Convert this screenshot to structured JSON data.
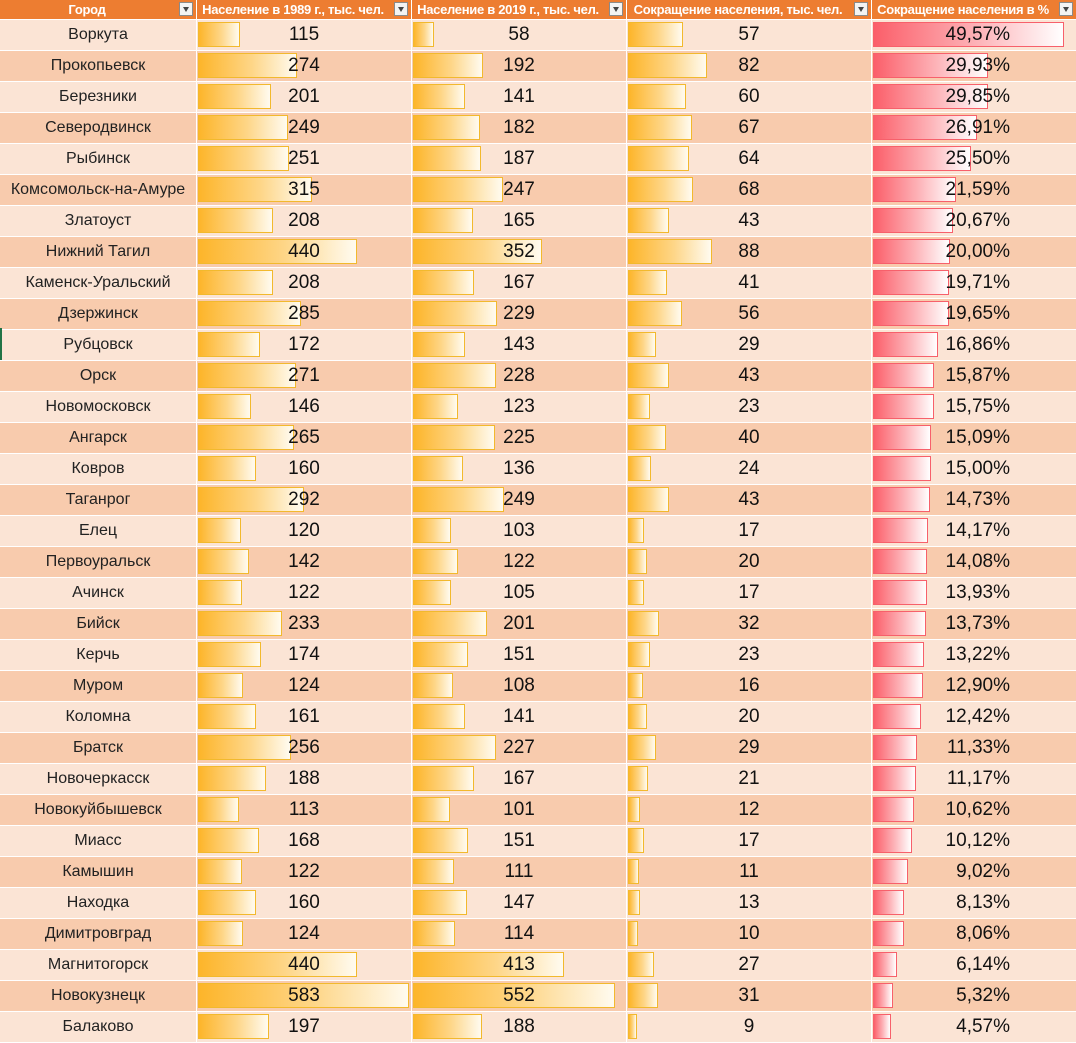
{
  "columns": [
    {
      "key": "city",
      "label": "Город"
    },
    {
      "key": "pop1989",
      "label": "Население в 1989 г., тыс. чел."
    },
    {
      "key": "pop2019",
      "label": "Население в 2019 г., тыс. чел."
    },
    {
      "key": "decline_abs",
      "label": "Сокращение населения, тыс. чел."
    },
    {
      "key": "decline_pct",
      "label": "Сокращение населения в %"
    }
  ],
  "bar_maxima": {
    "pop1989": 583,
    "pop2019": 552,
    "decline_abs": 250,
    "decline_pct": 52
  },
  "colors": {
    "header": "#ed7d31",
    "row_light": "#fbe4d5",
    "row_dark": "#f8cbad",
    "bar_orange": "#fdb52a",
    "bar_red": "#fb5f6a"
  },
  "rows": [
    {
      "city": "Воркута",
      "pop1989": 115,
      "pop2019": 58,
      "decline_abs": 57,
      "decline_pct_value": 49.57,
      "decline_pct": "49,57%"
    },
    {
      "city": "Прокопьевск",
      "pop1989": 274,
      "pop2019": 192,
      "decline_abs": 82,
      "decline_pct_value": 29.93,
      "decline_pct": "29,93%"
    },
    {
      "city": "Березники",
      "pop1989": 201,
      "pop2019": 141,
      "decline_abs": 60,
      "decline_pct_value": 29.85,
      "decline_pct": "29,85%"
    },
    {
      "city": "Северодвинск",
      "pop1989": 249,
      "pop2019": 182,
      "decline_abs": 67,
      "decline_pct_value": 26.91,
      "decline_pct": "26,91%"
    },
    {
      "city": "Рыбинск",
      "pop1989": 251,
      "pop2019": 187,
      "decline_abs": 64,
      "decline_pct_value": 25.5,
      "decline_pct": "25,50%"
    },
    {
      "city": "Комсомольск-на-Амуре",
      "pop1989": 315,
      "pop2019": 247,
      "decline_abs": 68,
      "decline_pct_value": 21.59,
      "decline_pct": "21,59%"
    },
    {
      "city": "Златоуст",
      "pop1989": 208,
      "pop2019": 165,
      "decline_abs": 43,
      "decline_pct_value": 20.67,
      "decline_pct": "20,67%"
    },
    {
      "city": "Нижний Тагил",
      "pop1989": 440,
      "pop2019": 352,
      "decline_abs": 88,
      "decline_pct_value": 20.0,
      "decline_pct": "20,00%"
    },
    {
      "city": "Каменск-Уральский",
      "pop1989": 208,
      "pop2019": 167,
      "decline_abs": 41,
      "decline_pct_value": 19.71,
      "decline_pct": "19,71%"
    },
    {
      "city": "Дзержинск",
      "pop1989": 285,
      "pop2019": 229,
      "decline_abs": 56,
      "decline_pct_value": 19.65,
      "decline_pct": "19,65%"
    },
    {
      "city": "Рубцовск",
      "pop1989": 172,
      "pop2019": 143,
      "decline_abs": 29,
      "decline_pct_value": 16.86,
      "decline_pct": "16,86%"
    },
    {
      "city": "Орск",
      "pop1989": 271,
      "pop2019": 228,
      "decline_abs": 43,
      "decline_pct_value": 15.87,
      "decline_pct": "15,87%"
    },
    {
      "city": "Новомосковск",
      "pop1989": 146,
      "pop2019": 123,
      "decline_abs": 23,
      "decline_pct_value": 15.75,
      "decline_pct": "15,75%"
    },
    {
      "city": "Ангарск",
      "pop1989": 265,
      "pop2019": 225,
      "decline_abs": 40,
      "decline_pct_value": 15.09,
      "decline_pct": "15,09%"
    },
    {
      "city": "Ковров",
      "pop1989": 160,
      "pop2019": 136,
      "decline_abs": 24,
      "decline_pct_value": 15.0,
      "decline_pct": "15,00%"
    },
    {
      "city": "Таганрог",
      "pop1989": 292,
      "pop2019": 249,
      "decline_abs": 43,
      "decline_pct_value": 14.73,
      "decline_pct": "14,73%"
    },
    {
      "city": "Елец",
      "pop1989": 120,
      "pop2019": 103,
      "decline_abs": 17,
      "decline_pct_value": 14.17,
      "decline_pct": "14,17%"
    },
    {
      "city": "Первоуральск",
      "pop1989": 142,
      "pop2019": 122,
      "decline_abs": 20,
      "decline_pct_value": 14.08,
      "decline_pct": "14,08%"
    },
    {
      "city": "Ачинск",
      "pop1989": 122,
      "pop2019": 105,
      "decline_abs": 17,
      "decline_pct_value": 13.93,
      "decline_pct": "13,93%"
    },
    {
      "city": "Бийск",
      "pop1989": 233,
      "pop2019": 201,
      "decline_abs": 32,
      "decline_pct_value": 13.73,
      "decline_pct": "13,73%"
    },
    {
      "city": "Керчь",
      "pop1989": 174,
      "pop2019": 151,
      "decline_abs": 23,
      "decline_pct_value": 13.22,
      "decline_pct": "13,22%"
    },
    {
      "city": "Муром",
      "pop1989": 124,
      "pop2019": 108,
      "decline_abs": 16,
      "decline_pct_value": 12.9,
      "decline_pct": "12,90%"
    },
    {
      "city": "Коломна",
      "pop1989": 161,
      "pop2019": 141,
      "decline_abs": 20,
      "decline_pct_value": 12.42,
      "decline_pct": "12,42%"
    },
    {
      "city": "Братск",
      "pop1989": 256,
      "pop2019": 227,
      "decline_abs": 29,
      "decline_pct_value": 11.33,
      "decline_pct": "11,33%"
    },
    {
      "city": "Новочеркасск",
      "pop1989": 188,
      "pop2019": 167,
      "decline_abs": 21,
      "decline_pct_value": 11.17,
      "decline_pct": "11,17%"
    },
    {
      "city": "Новокуйбышевск",
      "pop1989": 113,
      "pop2019": 101,
      "decline_abs": 12,
      "decline_pct_value": 10.62,
      "decline_pct": "10,62%"
    },
    {
      "city": "Миасс",
      "pop1989": 168,
      "pop2019": 151,
      "decline_abs": 17,
      "decline_pct_value": 10.12,
      "decline_pct": "10,12%"
    },
    {
      "city": "Камышин",
      "pop1989": 122,
      "pop2019": 111,
      "decline_abs": 11,
      "decline_pct_value": 9.02,
      "decline_pct": "9,02%"
    },
    {
      "city": "Находка",
      "pop1989": 160,
      "pop2019": 147,
      "decline_abs": 13,
      "decline_pct_value": 8.13,
      "decline_pct": "8,13%"
    },
    {
      "city": "Димитровград",
      "pop1989": 124,
      "pop2019": 114,
      "decline_abs": 10,
      "decline_pct_value": 8.06,
      "decline_pct": "8,06%"
    },
    {
      "city": "Магнитогорск",
      "pop1989": 440,
      "pop2019": 413,
      "decline_abs": 27,
      "decline_pct_value": 6.14,
      "decline_pct": "6,14%"
    },
    {
      "city": "Новокузнецк",
      "pop1989": 583,
      "pop2019": 552,
      "decline_abs": 31,
      "decline_pct_value": 5.32,
      "decline_pct": "5,32%"
    },
    {
      "city": "Балаково",
      "pop1989": 197,
      "pop2019": 188,
      "decline_abs": 9,
      "decline_pct_value": 4.57,
      "decline_pct": "4,57%"
    }
  ]
}
